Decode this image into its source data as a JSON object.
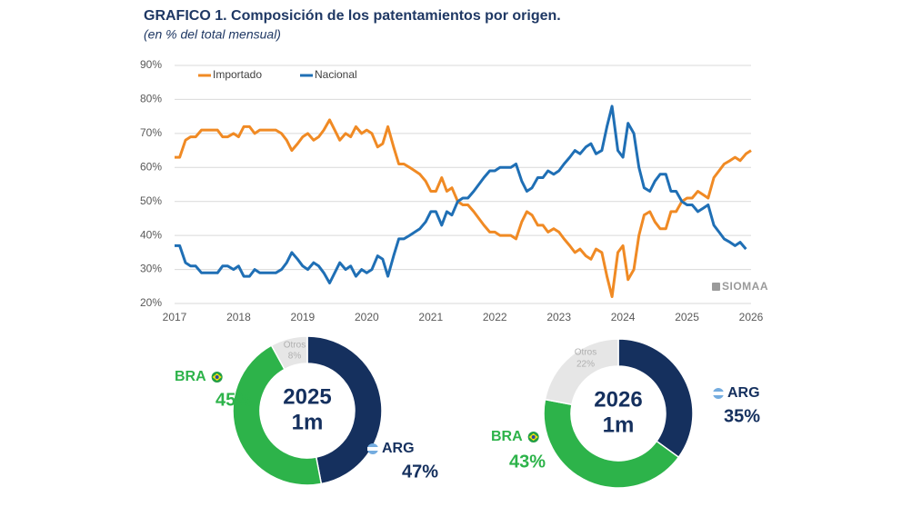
{
  "chart_data": [
    {
      "type": "line",
      "title": "GRAFICO 1. Composición de los patentamientos por origen.",
      "subtitle": "(en % del total mensual)",
      "watermark": "SIOMAA",
      "legend": "top-left",
      "grid": true,
      "xlim": [
        2017,
        2026
      ],
      "xticks": [
        2017,
        2018,
        2019,
        2020,
        2021,
        2022,
        2023,
        2024,
        2025,
        2026
      ],
      "ylim": [
        20,
        90
      ],
      "yticks": [
        {
          "value": 20,
          "label": "20%"
        },
        {
          "value": 30,
          "label": "30%"
        },
        {
          "value": 40,
          "label": "40%"
        },
        {
          "value": 50,
          "label": "50%"
        },
        {
          "value": 60,
          "label": "60%"
        },
        {
          "value": 70,
          "label": "70%"
        },
        {
          "value": 80,
          "label": "80%"
        },
        {
          "value": 90,
          "label": "90%"
        }
      ],
      "x": [
        2017,
        2017.08,
        2017.17,
        2017.25,
        2017.33,
        2017.42,
        2017.5,
        2017.58,
        2017.67,
        2017.75,
        2017.83,
        2017.92,
        2018,
        2018.08,
        2018.17,
        2018.25,
        2018.33,
        2018.42,
        2018.5,
        2018.58,
        2018.67,
        2018.75,
        2018.83,
        2018.92,
        2019,
        2019.08,
        2019.17,
        2019.25,
        2019.33,
        2019.42,
        2019.5,
        2019.58,
        2019.67,
        2019.75,
        2019.83,
        2019.92,
        2020,
        2020.08,
        2020.17,
        2020.25,
        2020.33,
        2020.42,
        2020.5,
        2020.58,
        2020.67,
        2020.75,
        2020.83,
        2020.92,
        2021,
        2021.08,
        2021.17,
        2021.25,
        2021.33,
        2021.42,
        2021.5,
        2021.58,
        2021.67,
        2021.75,
        2021.83,
        2021.92,
        2022,
        2022.08,
        2022.17,
        2022.25,
        2022.33,
        2022.42,
        2022.5,
        2022.58,
        2022.67,
        2022.75,
        2022.83,
        2022.92,
        2023,
        2023.08,
        2023.17,
        2023.25,
        2023.33,
        2023.42,
        2023.5,
        2023.58,
        2023.67,
        2023.75,
        2023.83,
        2023.92,
        2024,
        2024.08,
        2024.17,
        2024.25,
        2024.33,
        2024.42,
        2024.5,
        2024.58,
        2024.67,
        2024.75,
        2024.83,
        2024.92,
        2025,
        2025.08,
        2025.17,
        2025.25,
        2025.33,
        2025.42,
        2025.5,
        2025.58,
        2025.67,
        2025.75,
        2025.83,
        2025.92,
        2026
      ],
      "series": [
        {
          "name": "Importado",
          "color": "#f08a24",
          "values": [
            63,
            63,
            68,
            69,
            69,
            71,
            71,
            71,
            71,
            69,
            69,
            70,
            69,
            72,
            72,
            70,
            71,
            71,
            71,
            71,
            70,
            68,
            65,
            67,
            69,
            70,
            68,
            69,
            71,
            74,
            71,
            68,
            70,
            69,
            72,
            70,
            71,
            70,
            66,
            67,
            72,
            66,
            61,
            61,
            60,
            59,
            58,
            56,
            53,
            53,
            57,
            53,
            54,
            50,
            49,
            49,
            47,
            45,
            43,
            41,
            41,
            40,
            40,
            40,
            39,
            44,
            47,
            46,
            43,
            43,
            41,
            42,
            41,
            39,
            37,
            35,
            36,
            34,
            33,
            36,
            35,
            28,
            22,
            35,
            37,
            27,
            30,
            40,
            46,
            47,
            44,
            42,
            42,
            47,
            47,
            50,
            51,
            51,
            53,
            52,
            51,
            57,
            59,
            61,
            62,
            63,
            62,
            64,
            65
          ]
        },
        {
          "name": "Nacional",
          "color": "#1f6fb5",
          "values": [
            37,
            37,
            32,
            31,
            31,
            29,
            29,
            29,
            29,
            31,
            31,
            30,
            31,
            28,
            28,
            30,
            29,
            29,
            29,
            29,
            30,
            32,
            35,
            33,
            31,
            30,
            32,
            31,
            29,
            26,
            29,
            32,
            30,
            31,
            28,
            30,
            29,
            30,
            34,
            33,
            28,
            34,
            39,
            39,
            40,
            41,
            42,
            44,
            47,
            47,
            43,
            47,
            46,
            50,
            51,
            51,
            53,
            55,
            57,
            59,
            59,
            60,
            60,
            60,
            61,
            56,
            53,
            54,
            57,
            57,
            59,
            58,
            59,
            61,
            63,
            65,
            64,
            66,
            67,
            64,
            65,
            72,
            78,
            65,
            63,
            73,
            70,
            60,
            54,
            53,
            56,
            58,
            58,
            53,
            53,
            50,
            49,
            49,
            47,
            48,
            49,
            43,
            41,
            39,
            38,
            37,
            38,
            36,
            null
          ]
        }
      ]
    },
    {
      "type": "donut",
      "center_labels": [
        "2025",
        "1m"
      ],
      "categories": [
        "ARG",
        "BRA",
        "Otros"
      ],
      "values": [
        47,
        45,
        8
      ],
      "value_labels": [
        "47%",
        "45%",
        "8%"
      ],
      "colors": [
        "#15305e",
        "#2db34a",
        "#e6e6e6"
      ]
    },
    {
      "type": "donut",
      "center_labels": [
        "2026",
        "1m"
      ],
      "categories": [
        "ARG",
        "BRA",
        "Otros"
      ],
      "values": [
        35,
        43,
        22
      ],
      "value_labels": [
        "35%",
        "43%",
        "22%"
      ],
      "colors": [
        "#15305e",
        "#2db34a",
        "#e6e6e6"
      ]
    }
  ]
}
